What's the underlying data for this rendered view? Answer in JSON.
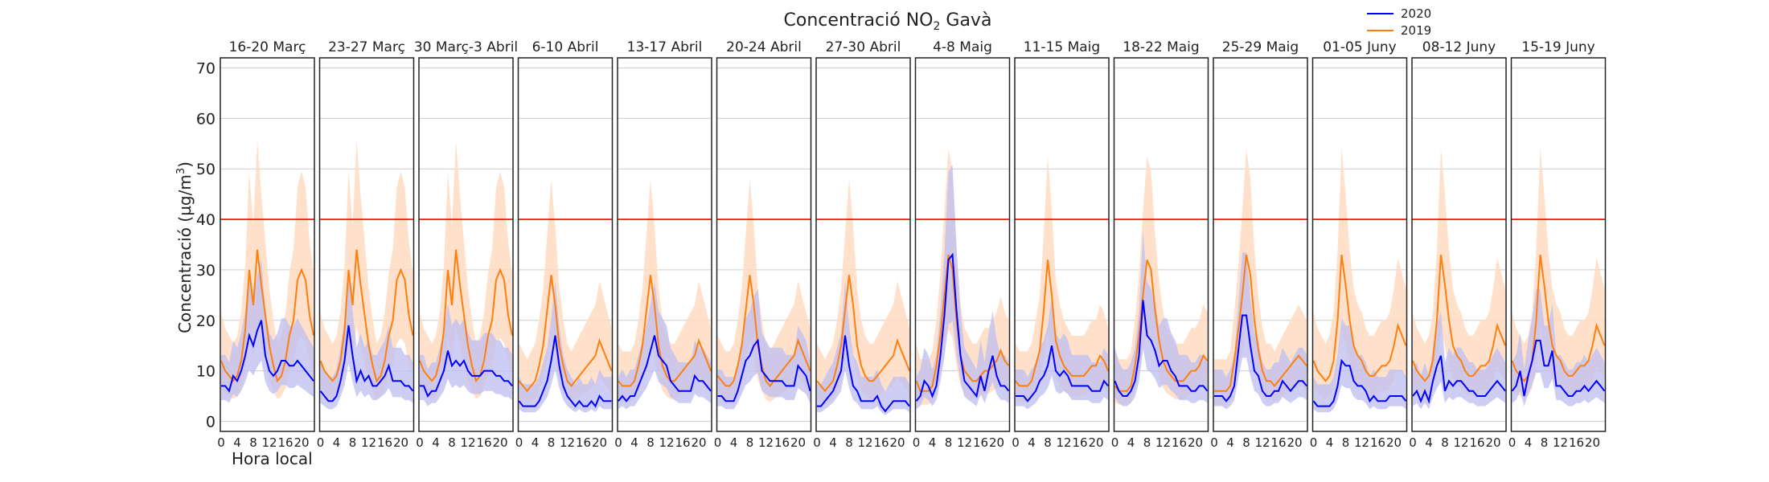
{
  "chart_data": {
    "type": "line",
    "title_main": "Concentració NO",
    "title_sub": "2",
    "title_tail": " Gavà",
    "ylabel_main": "Concentració (µg/m",
    "ylabel_sup": "3",
    "ylabel_tail": ")",
    "xlabel": "Hora local",
    "ylim": [
      -2,
      72
    ],
    "yticks": [
      0,
      10,
      20,
      30,
      40,
      50,
      60,
      70
    ],
    "xticks": [
      0,
      4,
      8,
      12,
      16,
      20
    ],
    "xlim": [
      0,
      23
    ],
    "limit_line": 40,
    "grid": true,
    "legend_position": "top-right",
    "legend": [
      {
        "label": "2020",
        "color": "#0000ff"
      },
      {
        "label": "2019",
        "color": "#ff7f0e"
      }
    ],
    "colors": {
      "s2020": "#0000ff",
      "s2019": "#ff7f0e",
      "band2020": "#bdbdf2",
      "band2019": "#ffdcc2",
      "limit": "#ff0000",
      "grid": "#cccccc"
    },
    "panels": [
      {
        "title": "16-20 Març",
        "s2020": [
          7,
          7,
          6,
          9,
          8,
          10,
          13,
          17,
          15,
          18,
          20,
          13,
          10,
          9,
          10,
          12,
          12,
          11,
          11,
          12,
          11,
          10,
          9,
          8
        ],
        "s2019": [
          12,
          10,
          9,
          8,
          9,
          12,
          18,
          30,
          23,
          34,
          27,
          21,
          15,
          11,
          8,
          9,
          12,
          17,
          20,
          28,
          30,
          28,
          21,
          17
        ]
      },
      {
        "title": "23-27 Març",
        "s2020": [
          6,
          5,
          4,
          4,
          5,
          8,
          12,
          19,
          13,
          8,
          10,
          8,
          9,
          7,
          7,
          8,
          9,
          11,
          8,
          8,
          8,
          7,
          7,
          6
        ],
        "s2019": [
          12,
          10,
          9,
          8,
          9,
          12,
          18,
          30,
          23,
          34,
          27,
          21,
          15,
          11,
          8,
          9,
          12,
          17,
          20,
          28,
          30,
          28,
          21,
          17
        ]
      },
      {
        "title": "30 Març-3 Abril",
        "s2020": [
          7,
          7,
          5,
          6,
          6,
          8,
          10,
          14,
          11,
          12,
          11,
          12,
          10,
          9,
          9,
          9,
          10,
          10,
          10,
          9,
          9,
          8,
          8,
          7
        ],
        "s2019": [
          12,
          10,
          9,
          8,
          9,
          12,
          18,
          30,
          23,
          34,
          27,
          21,
          15,
          11,
          8,
          9,
          12,
          17,
          20,
          28,
          30,
          28,
          21,
          17
        ]
      },
      {
        "title": "6-10 Abril",
        "s2020": [
          4,
          3,
          3,
          3,
          3,
          4,
          6,
          8,
          12,
          17,
          11,
          7,
          5,
          4,
          3,
          4,
          3,
          3,
          4,
          3,
          5,
          4,
          4,
          4
        ],
        "s2019": [
          8,
          7,
          6,
          7,
          8,
          11,
          15,
          22,
          29,
          23,
          15,
          11,
          8,
          7,
          8,
          9,
          10,
          11,
          12,
          13,
          16,
          14,
          12,
          10
        ]
      },
      {
        "title": "13-17 Abril",
        "s2020": [
          4,
          5,
          4,
          5,
          5,
          7,
          9,
          11,
          14,
          17,
          13,
          12,
          11,
          8,
          7,
          6,
          6,
          6,
          6,
          9,
          8,
          8,
          7,
          6
        ],
        "s2019": [
          8,
          7,
          7,
          7,
          8,
          11,
          15,
          22,
          29,
          23,
          15,
          11,
          9,
          8,
          8,
          9,
          10,
          11,
          12,
          13,
          16,
          14,
          12,
          10
        ]
      },
      {
        "title": "20-24 Abril",
        "s2020": [
          5,
          5,
          4,
          4,
          4,
          6,
          9,
          12,
          13,
          15,
          16,
          10,
          9,
          8,
          8,
          8,
          8,
          7,
          7,
          7,
          11,
          10,
          9,
          6
        ],
        "s2019": [
          9,
          8,
          7,
          7,
          8,
          11,
          15,
          22,
          29,
          23,
          15,
          11,
          8,
          7,
          8,
          9,
          10,
          11,
          12,
          13,
          16,
          14,
          12,
          10
        ]
      },
      {
        "title": "27-30 Abril",
        "s2020": [
          3,
          3,
          4,
          5,
          6,
          8,
          10,
          17,
          11,
          7,
          6,
          4,
          4,
          4,
          4,
          5,
          3,
          2,
          3,
          4,
          4,
          4,
          4,
          3
        ],
        "s2019": [
          8,
          7,
          6,
          7,
          8,
          11,
          15,
          22,
          29,
          23,
          15,
          11,
          9,
          8,
          8,
          9,
          10,
          11,
          12,
          13,
          16,
          14,
          12,
          10
        ]
      },
      {
        "title": "4-8 Maig",
        "s2020": [
          4,
          5,
          8,
          7,
          5,
          7,
          13,
          21,
          32,
          33,
          22,
          13,
          8,
          7,
          6,
          5,
          9,
          6,
          10,
          13,
          9,
          7,
          7,
          6
        ],
        "s2019": [
          8,
          6,
          6,
          6,
          7,
          11,
          17,
          25,
          33,
          30,
          20,
          13,
          10,
          9,
          8,
          8,
          9,
          10,
          10,
          11,
          12,
          14,
          12,
          11
        ]
      },
      {
        "title": "11-15 Maig",
        "s2020": [
          5,
          5,
          5,
          4,
          5,
          6,
          8,
          9,
          11,
          15,
          10,
          9,
          10,
          9,
          7,
          7,
          7,
          7,
          7,
          6,
          6,
          6,
          8,
          7
        ],
        "s2019": [
          8,
          7,
          7,
          7,
          8,
          11,
          14,
          22,
          32,
          25,
          16,
          13,
          11,
          10,
          9,
          9,
          9,
          9,
          10,
          11,
          11,
          13,
          12,
          10
        ]
      },
      {
        "title": "18-22 Maig",
        "s2020": [
          8,
          6,
          5,
          5,
          6,
          8,
          13,
          24,
          17,
          16,
          14,
          11,
          12,
          12,
          10,
          9,
          7,
          7,
          7,
          6,
          6,
          7,
          7,
          6
        ],
        "s2019": [
          7,
          6,
          6,
          6,
          7,
          11,
          17,
          25,
          32,
          30,
          22,
          16,
          12,
          10,
          9,
          8,
          8,
          8,
          9,
          10,
          10,
          11,
          13,
          12
        ]
      },
      {
        "title": "25-29 Maig",
        "s2020": [
          5,
          5,
          5,
          4,
          5,
          7,
          14,
          21,
          21,
          15,
          10,
          9,
          6,
          5,
          5,
          6,
          6,
          8,
          7,
          6,
          7,
          8,
          8,
          7
        ],
        "s2019": [
          6,
          6,
          6,
          6,
          7,
          12,
          18,
          25,
          33,
          29,
          20,
          14,
          10,
          8,
          8,
          7,
          8,
          9,
          10,
          11,
          12,
          13,
          12,
          11
        ]
      },
      {
        "title": "01-05 Juny",
        "s2020": [
          4,
          3,
          3,
          3,
          3,
          4,
          7,
          12,
          11,
          11,
          8,
          7,
          7,
          6,
          4,
          5,
          4,
          4,
          4,
          5,
          5,
          5,
          5,
          4
        ],
        "s2019": [
          12,
          10,
          9,
          8,
          9,
          12,
          20,
          33,
          27,
          20,
          15,
          13,
          12,
          10,
          9,
          9,
          10,
          11,
          11,
          12,
          15,
          19,
          17,
          15
        ]
      },
      {
        "title": "08-12 Juny",
        "s2020": [
          5,
          6,
          4,
          6,
          4,
          8,
          11,
          13,
          6,
          8,
          7,
          8,
          8,
          7,
          6,
          6,
          5,
          5,
          5,
          6,
          7,
          8,
          7,
          6
        ],
        "s2019": [
          12,
          10,
          9,
          8,
          9,
          12,
          20,
          33,
          27,
          20,
          15,
          13,
          12,
          10,
          9,
          9,
          10,
          11,
          11,
          12,
          15,
          19,
          17,
          15
        ]
      },
      {
        "title": "15-19 Juny",
        "s2020": [
          6,
          7,
          10,
          5,
          9,
          12,
          16,
          16,
          11,
          11,
          14,
          7,
          7,
          6,
          5,
          5,
          6,
          6,
          7,
          6,
          7,
          8,
          7,
          6
        ],
        "s2019": [
          12,
          10,
          9,
          8,
          9,
          12,
          20,
          33,
          27,
          20,
          15,
          13,
          12,
          10,
          9,
          9,
          10,
          11,
          11,
          12,
          15,
          19,
          17,
          15
        ]
      }
    ]
  }
}
